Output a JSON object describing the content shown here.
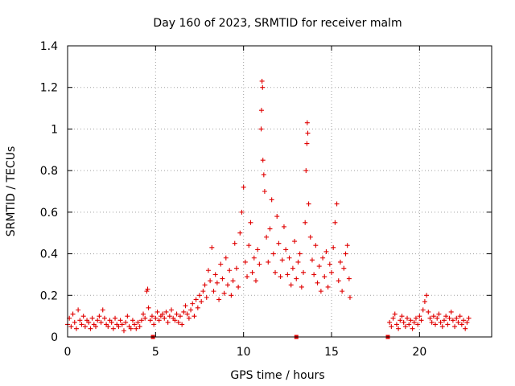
{
  "chart_data": {
    "type": "scatter",
    "title": "Day 160 of 2023, SRMTID for receiver malm",
    "xlabel": "GPS time / hours",
    "ylabel": "SRMTID / TECUs",
    "xlim": [
      0,
      24.1
    ],
    "ylim": [
      0,
      1.4
    ],
    "grid": true,
    "marker": "+",
    "color": "#e00000",
    "x_ticks": [
      {
        "value": 0,
        "label": "0"
      },
      {
        "value": 5,
        "label": "5"
      },
      {
        "value": 10,
        "label": "10"
      },
      {
        "value": 15,
        "label": "15"
      },
      {
        "value": 20,
        "label": "20"
      }
    ],
    "y_ticks": [
      {
        "value": 0,
        "label": "0"
      },
      {
        "value": 0.2,
        "label": "0.2"
      },
      {
        "value": 0.4,
        "label": "0.4"
      },
      {
        "value": 0.6,
        "label": "0.6"
      },
      {
        "value": 0.8,
        "label": "0.8"
      },
      {
        "value": 1.0,
        "label": "1"
      },
      {
        "value": 1.2,
        "label": "1.2"
      },
      {
        "value": 1.4,
        "label": "1.4"
      }
    ],
    "gap_markers_x": [
      4.85,
      13.0,
      18.2
    ],
    "series": [
      {
        "name": "SRMTID",
        "points": [
          [
            0.0,
            0.06
          ],
          [
            0.1,
            0.09
          ],
          [
            0.2,
            0.05
          ],
          [
            0.3,
            0.11
          ],
          [
            0.4,
            0.07
          ],
          [
            0.5,
            0.04
          ],
          [
            0.6,
            0.13
          ],
          [
            0.7,
            0.08
          ],
          [
            0.8,
            0.06
          ],
          [
            0.9,
            0.1
          ],
          [
            1.0,
            0.05
          ],
          [
            1.1,
            0.08
          ],
          [
            1.2,
            0.07
          ],
          [
            1.3,
            0.04
          ],
          [
            1.4,
            0.09
          ],
          [
            1.5,
            0.06
          ],
          [
            1.6,
            0.05
          ],
          [
            1.7,
            0.08
          ],
          [
            1.8,
            0.1
          ],
          [
            1.9,
            0.07
          ],
          [
            2.0,
            0.13
          ],
          [
            2.1,
            0.09
          ],
          [
            2.2,
            0.06
          ],
          [
            2.3,
            0.05
          ],
          [
            2.4,
            0.08
          ],
          [
            2.5,
            0.07
          ],
          [
            2.6,
            0.04
          ],
          [
            2.7,
            0.09
          ],
          [
            2.8,
            0.06
          ],
          [
            2.9,
            0.05
          ],
          [
            3.0,
            0.08
          ],
          [
            3.1,
            0.06
          ],
          [
            3.2,
            0.03
          ],
          [
            3.3,
            0.07
          ],
          [
            3.4,
            0.1
          ],
          [
            3.5,
            0.05
          ],
          [
            3.6,
            0.04
          ],
          [
            3.7,
            0.08
          ],
          [
            3.8,
            0.06
          ],
          [
            3.9,
            0.04
          ],
          [
            4.0,
            0.07
          ],
          [
            4.1,
            0.05
          ],
          [
            4.2,
            0.08
          ],
          [
            4.3,
            0.11
          ],
          [
            4.4,
            0.09
          ],
          [
            4.5,
            0.22
          ],
          [
            4.55,
            0.23
          ],
          [
            4.6,
            0.14
          ],
          [
            4.7,
            0.08
          ],
          [
            4.8,
            0.1
          ],
          [
            4.9,
            0.06
          ],
          [
            5.0,
            0.09
          ],
          [
            5.1,
            0.12
          ],
          [
            5.2,
            0.08
          ],
          [
            5.3,
            0.1
          ],
          [
            5.4,
            0.11
          ],
          [
            5.5,
            0.09
          ],
          [
            5.6,
            0.12
          ],
          [
            5.7,
            0.07
          ],
          [
            5.8,
            0.1
          ],
          [
            5.9,
            0.13
          ],
          [
            6.0,
            0.09
          ],
          [
            6.1,
            0.08
          ],
          [
            6.2,
            0.11
          ],
          [
            6.3,
            0.07
          ],
          [
            6.4,
            0.1
          ],
          [
            6.5,
            0.06
          ],
          [
            6.6,
            0.12
          ],
          [
            6.7,
            0.15
          ],
          [
            6.8,
            0.11
          ],
          [
            6.9,
            0.09
          ],
          [
            7.0,
            0.13
          ],
          [
            7.1,
            0.16
          ],
          [
            7.2,
            0.1
          ],
          [
            7.3,
            0.18
          ],
          [
            7.4,
            0.14
          ],
          [
            7.5,
            0.2
          ],
          [
            7.6,
            0.17
          ],
          [
            7.7,
            0.22
          ],
          [
            7.8,
            0.25
          ],
          [
            7.9,
            0.19
          ],
          [
            8.0,
            0.32
          ],
          [
            8.1,
            0.27
          ],
          [
            8.2,
            0.43
          ],
          [
            8.3,
            0.22
          ],
          [
            8.4,
            0.3
          ],
          [
            8.5,
            0.26
          ],
          [
            8.6,
            0.18
          ],
          [
            8.7,
            0.35
          ],
          [
            8.8,
            0.28
          ],
          [
            8.9,
            0.21
          ],
          [
            9.0,
            0.38
          ],
          [
            9.1,
            0.25
          ],
          [
            9.2,
            0.32
          ],
          [
            9.3,
            0.2
          ],
          [
            9.4,
            0.27
          ],
          [
            9.5,
            0.45
          ],
          [
            9.6,
            0.33
          ],
          [
            9.7,
            0.24
          ],
          [
            9.8,
            0.5
          ],
          [
            9.9,
            0.6
          ],
          [
            10.0,
            0.72
          ],
          [
            10.1,
            0.36
          ],
          [
            10.2,
            0.29
          ],
          [
            10.3,
            0.44
          ],
          [
            10.4,
            0.55
          ],
          [
            10.5,
            0.31
          ],
          [
            10.6,
            0.38
          ],
          [
            10.7,
            0.27
          ],
          [
            10.8,
            0.42
          ],
          [
            10.9,
            0.35
          ],
          [
            11.0,
            1.0
          ],
          [
            11.02,
            1.09
          ],
          [
            11.05,
            1.23
          ],
          [
            11.08,
            1.2
          ],
          [
            11.1,
            0.85
          ],
          [
            11.15,
            0.78
          ],
          [
            11.2,
            0.7
          ],
          [
            11.3,
            0.48
          ],
          [
            11.4,
            0.36
          ],
          [
            11.5,
            0.52
          ],
          [
            11.6,
            0.66
          ],
          [
            11.7,
            0.4
          ],
          [
            11.8,
            0.31
          ],
          [
            11.9,
            0.58
          ],
          [
            12.0,
            0.45
          ],
          [
            12.1,
            0.29
          ],
          [
            12.2,
            0.37
          ],
          [
            12.3,
            0.53
          ],
          [
            12.4,
            0.42
          ],
          [
            12.5,
            0.3
          ],
          [
            12.6,
            0.38
          ],
          [
            12.7,
            0.25
          ],
          [
            12.8,
            0.33
          ],
          [
            12.9,
            0.46
          ],
          [
            13.0,
            0.28
          ],
          [
            13.1,
            0.36
          ],
          [
            13.2,
            0.4
          ],
          [
            13.3,
            0.24
          ],
          [
            13.4,
            0.31
          ],
          [
            13.5,
            0.55
          ],
          [
            13.55,
            0.8
          ],
          [
            13.6,
            0.93
          ],
          [
            13.62,
            1.03
          ],
          [
            13.65,
            0.98
          ],
          [
            13.7,
            0.64
          ],
          [
            13.8,
            0.48
          ],
          [
            13.9,
            0.37
          ],
          [
            14.0,
            0.3
          ],
          [
            14.1,
            0.44
          ],
          [
            14.2,
            0.26
          ],
          [
            14.3,
            0.34
          ],
          [
            14.4,
            0.22
          ],
          [
            14.5,
            0.38
          ],
          [
            14.6,
            0.29
          ],
          [
            14.7,
            0.41
          ],
          [
            14.8,
            0.24
          ],
          [
            14.9,
            0.35
          ],
          [
            15.0,
            0.31
          ],
          [
            15.1,
            0.43
          ],
          [
            15.2,
            0.55
          ],
          [
            15.3,
            0.64
          ],
          [
            15.4,
            0.27
          ],
          [
            15.5,
            0.36
          ],
          [
            15.6,
            0.22
          ],
          [
            15.7,
            0.33
          ],
          [
            15.8,
            0.4
          ],
          [
            15.9,
            0.44
          ],
          [
            16.0,
            0.28
          ],
          [
            16.05,
            0.19
          ],
          [
            18.3,
            0.07
          ],
          [
            18.4,
            0.05
          ],
          [
            18.5,
            0.09
          ],
          [
            18.6,
            0.11
          ],
          [
            18.7,
            0.06
          ],
          [
            18.8,
            0.04
          ],
          [
            18.9,
            0.08
          ],
          [
            19.0,
            0.1
          ],
          [
            19.1,
            0.07
          ],
          [
            19.2,
            0.05
          ],
          [
            19.3,
            0.09
          ],
          [
            19.4,
            0.06
          ],
          [
            19.5,
            0.08
          ],
          [
            19.6,
            0.04
          ],
          [
            19.7,
            0.07
          ],
          [
            19.8,
            0.09
          ],
          [
            19.9,
            0.06
          ],
          [
            20.0,
            0.1
          ],
          [
            20.1,
            0.08
          ],
          [
            20.2,
            0.13
          ],
          [
            20.3,
            0.17
          ],
          [
            20.4,
            0.2
          ],
          [
            20.5,
            0.12
          ],
          [
            20.6,
            0.09
          ],
          [
            20.7,
            0.07
          ],
          [
            20.8,
            0.1
          ],
          [
            20.9,
            0.06
          ],
          [
            21.0,
            0.09
          ],
          [
            21.1,
            0.11
          ],
          [
            21.2,
            0.07
          ],
          [
            21.3,
            0.05
          ],
          [
            21.4,
            0.08
          ],
          [
            21.5,
            0.1
          ],
          [
            21.6,
            0.06
          ],
          [
            21.7,
            0.09
          ],
          [
            21.8,
            0.12
          ],
          [
            21.9,
            0.08
          ],
          [
            22.0,
            0.05
          ],
          [
            22.1,
            0.09
          ],
          [
            22.2,
            0.07
          ],
          [
            22.3,
            0.1
          ],
          [
            22.4,
            0.06
          ],
          [
            22.5,
            0.08
          ],
          [
            22.6,
            0.04
          ],
          [
            22.7,
            0.07
          ],
          [
            22.8,
            0.09
          ]
        ]
      }
    ]
  }
}
